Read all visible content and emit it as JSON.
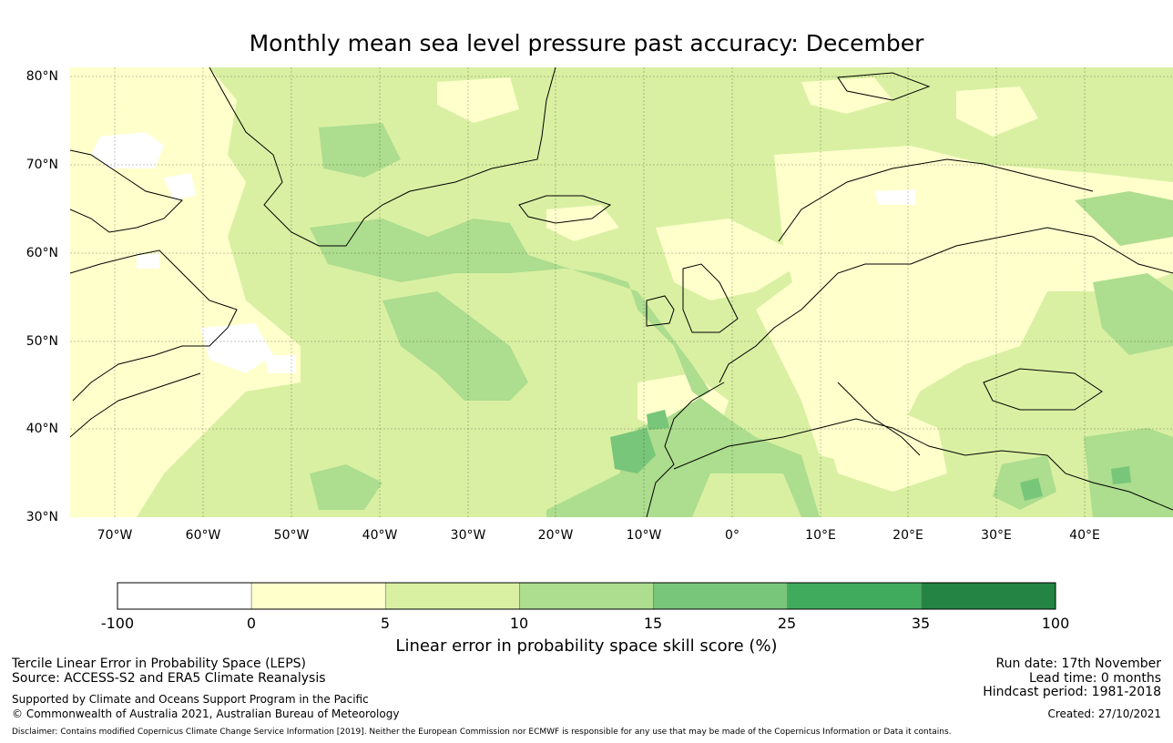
{
  "title": "Monthly mean sea level pressure past accuracy: December",
  "map": {
    "lat_labels": [
      "80°N",
      "70°N",
      "60°N",
      "50°N",
      "40°N",
      "30°N"
    ],
    "lon_labels": [
      "70°W",
      "60°W",
      "50°W",
      "40°W",
      "30°W",
      "20°W",
      "10°W",
      "0°",
      "10°E",
      "20°E",
      "30°E",
      "40°E"
    ],
    "lat_range": [
      30,
      81
    ],
    "lon_range": [
      -75,
      50
    ]
  },
  "colorbar": {
    "ticks": [
      "-100",
      "0",
      "5",
      "10",
      "15",
      "25",
      "35",
      "100"
    ],
    "colors": [
      "#ffffff",
      "#ffffcc",
      "#d9f0a3",
      "#addd8e",
      "#78c679",
      "#41ab5d",
      "#238443"
    ],
    "label": "Linear error in probability space skill score (%)"
  },
  "footer": {
    "left_line1": "Tercile Linear Error in Probability Space (LEPS)",
    "left_line2": "Source: ACCESS-S2 and ERA5 Climate Reanalysis",
    "left_line3": "Supported by Climate and Oceans Support Program in the Pacific",
    "left_line4": "© Commonwealth of Australia 2021, Australian Bureau of Meteorology",
    "right_line1": "Run date: 17th November",
    "right_line2": "Lead time: 0 months",
    "right_line3": "Hindcast period: 1981-2018",
    "right_line4": "Created: 27/10/2021",
    "disclaimer": "Disclaimer: Contains modified Copernicus Climate Change Service Information [2019]. Neither the European Commission nor ECMWF is responsible for any use that may be made of the Copernicus Information or Data it contains."
  }
}
